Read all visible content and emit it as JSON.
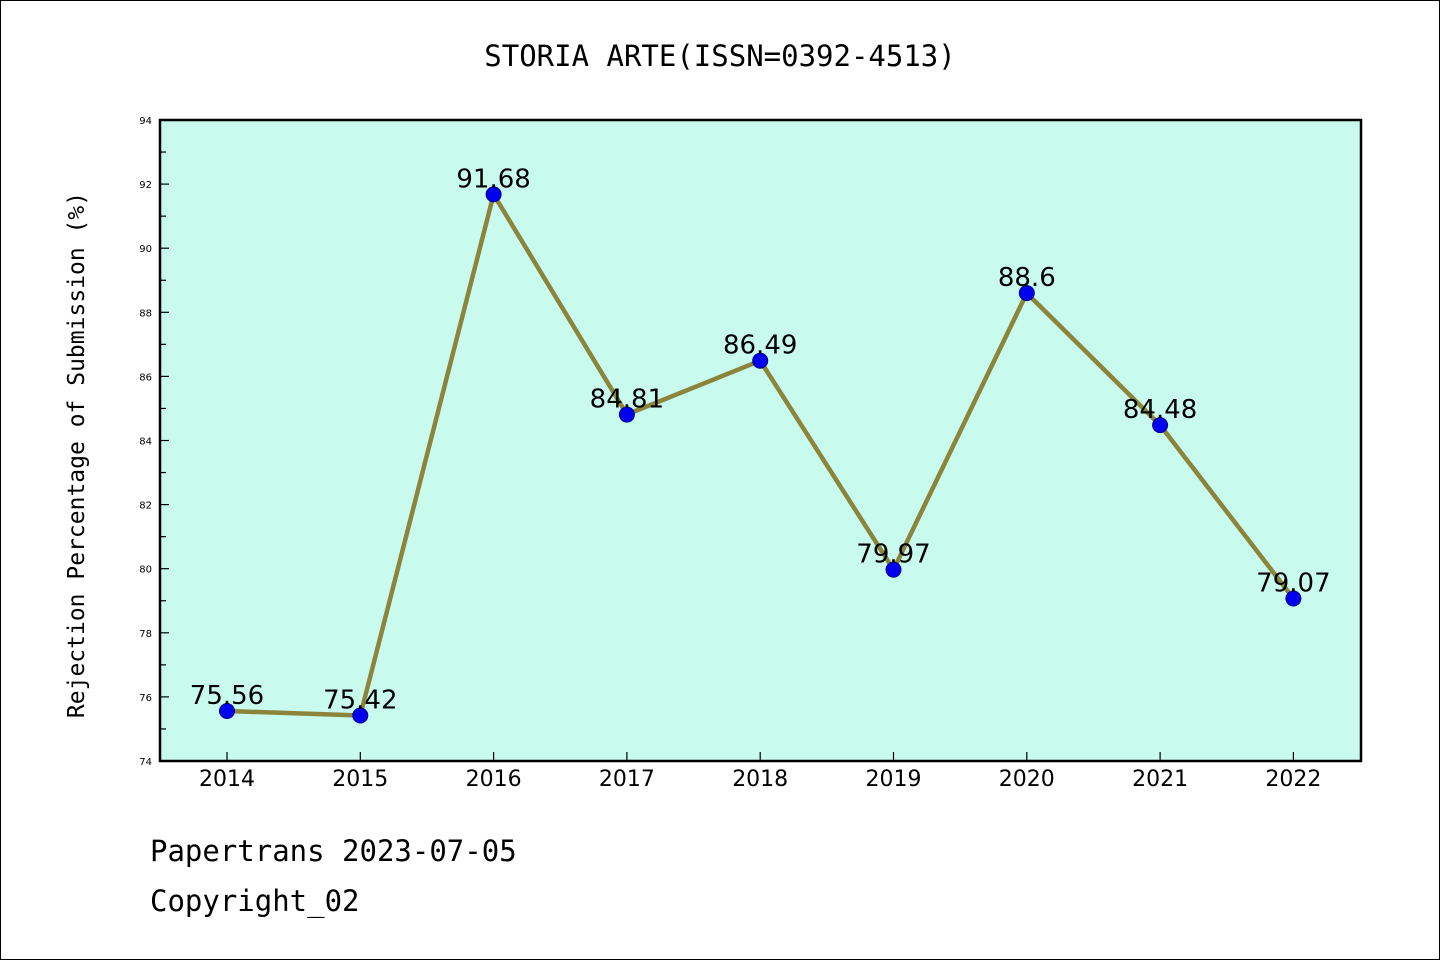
{
  "chart_data": {
    "type": "line",
    "title": "STORIA ARTE(ISSN=0392-4513)",
    "xlabel": "",
    "ylabel": "Rejection Percentage of Submission (%)",
    "categories": [
      "2014",
      "2015",
      "2016",
      "2017",
      "2018",
      "2019",
      "2020",
      "2021",
      "2022"
    ],
    "values": [
      75.56,
      75.42,
      91.68,
      84.81,
      86.49,
      79.97,
      88.6,
      84.48,
      79.07
    ],
    "data_labels": [
      "75.56",
      "75.42",
      "91.68",
      "84.81",
      "86.49",
      "79.97",
      "88.6",
      "84.48",
      "79.07"
    ],
    "ylim": [
      74,
      94
    ],
    "yticks": [
      "74",
      "76",
      "78",
      "80",
      "82",
      "84",
      "86",
      "88",
      "90",
      "92",
      "94"
    ],
    "grid": false,
    "legend": "none",
    "colors": {
      "plot_background": "#c8fbee",
      "line": "#8b843a",
      "marker": "#0000ee",
      "axes": "#000000"
    }
  },
  "footer": {
    "line1": "Papertrans 2023-07-05",
    "line2": "Copyright_02"
  }
}
